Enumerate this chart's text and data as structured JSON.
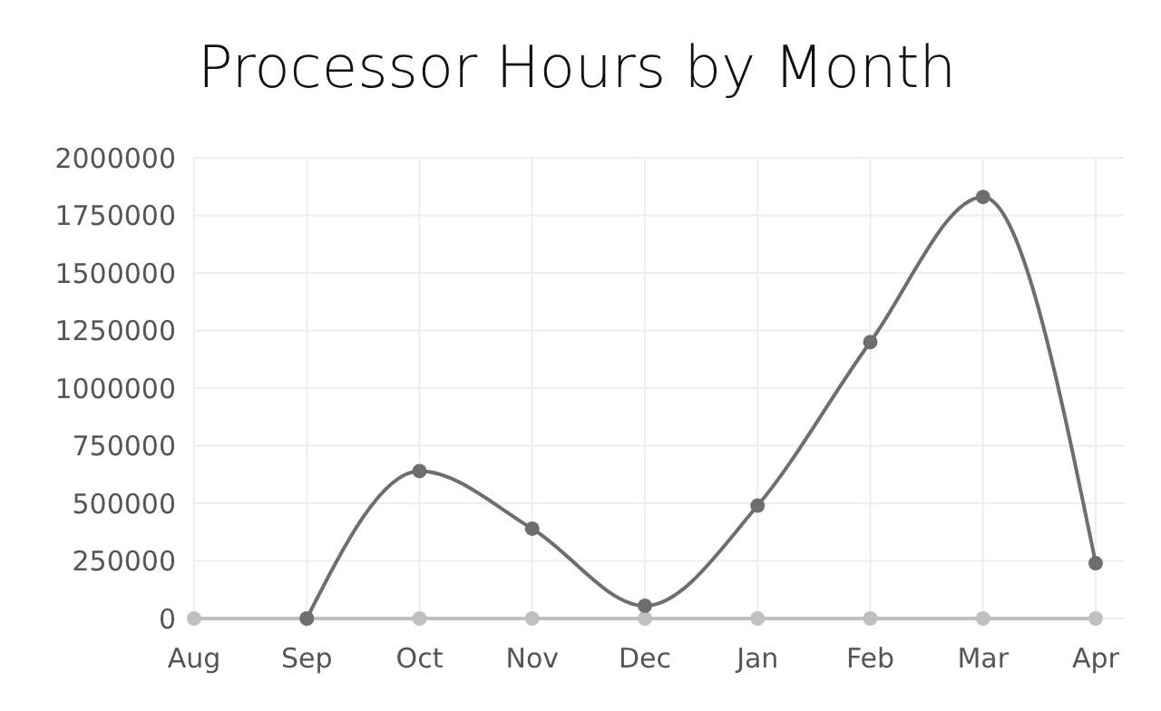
{
  "chart_data": {
    "type": "line",
    "title": "Processor Hours by Month",
    "categories": [
      "Aug",
      "Sep",
      "Oct",
      "Nov",
      "Dec",
      "Jan",
      "Feb",
      "Mar",
      "Apr"
    ],
    "series": [
      {
        "color": "#6e6e6e",
        "values": [
          null,
          0,
          640000,
          390000,
          55000,
          490000,
          1200000,
          1830000,
          240000
        ]
      },
      {
        "color": "#c0c0c0",
        "values": [
          0,
          0,
          0,
          0,
          0,
          0,
          0,
          0,
          0
        ]
      }
    ],
    "ylim": [
      0,
      2000000
    ],
    "yticks": [
      0,
      250000,
      500000,
      750000,
      1000000,
      1250000,
      1500000,
      1750000,
      2000000
    ],
    "grid": true,
    "marker": "circle",
    "line_style": "solid"
  }
}
